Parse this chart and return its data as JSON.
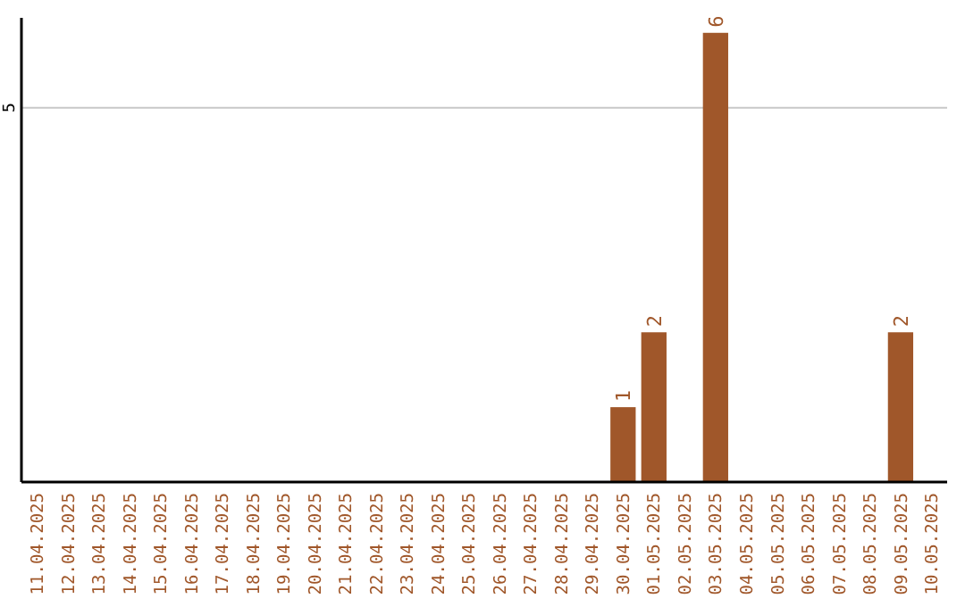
{
  "chart_data": {
    "type": "bar",
    "categories": [
      "11.04.2025",
      "12.04.2025",
      "13.04.2025",
      "14.04.2025",
      "15.04.2025",
      "16.04.2025",
      "17.04.2025",
      "18.04.2025",
      "19.04.2025",
      "20.04.2025",
      "21.04.2025",
      "22.04.2025",
      "23.04.2025",
      "24.04.2025",
      "25.04.2025",
      "26.04.2025",
      "27.04.2025",
      "28.04.2025",
      "29.04.2025",
      "30.04.2025",
      "01.05.2025",
      "02.05.2025",
      "03.05.2025",
      "04.05.2025",
      "05.05.2025",
      "06.05.2025",
      "07.05.2025",
      "08.05.2025",
      "09.05.2025",
      "10.05.2025"
    ],
    "values": [
      null,
      null,
      null,
      null,
      null,
      null,
      null,
      null,
      null,
      null,
      null,
      null,
      null,
      null,
      null,
      null,
      null,
      null,
      null,
      1,
      2,
      null,
      6,
      null,
      null,
      null,
      null,
      null,
      2,
      null
    ],
    "value_labels": [
      null,
      null,
      null,
      null,
      null,
      null,
      null,
      null,
      null,
      null,
      null,
      null,
      null,
      null,
      null,
      null,
      null,
      null,
      null,
      "1",
      "2",
      null,
      "6",
      null,
      null,
      null,
      null,
      null,
      "2",
      null
    ],
    "color": "#a0572a",
    "ylim": [
      0,
      6.2
    ],
    "ref_lines": [
      {
        "axis": "y",
        "value": 5,
        "label": "5",
        "color": "#c8c8c8"
      }
    ]
  }
}
